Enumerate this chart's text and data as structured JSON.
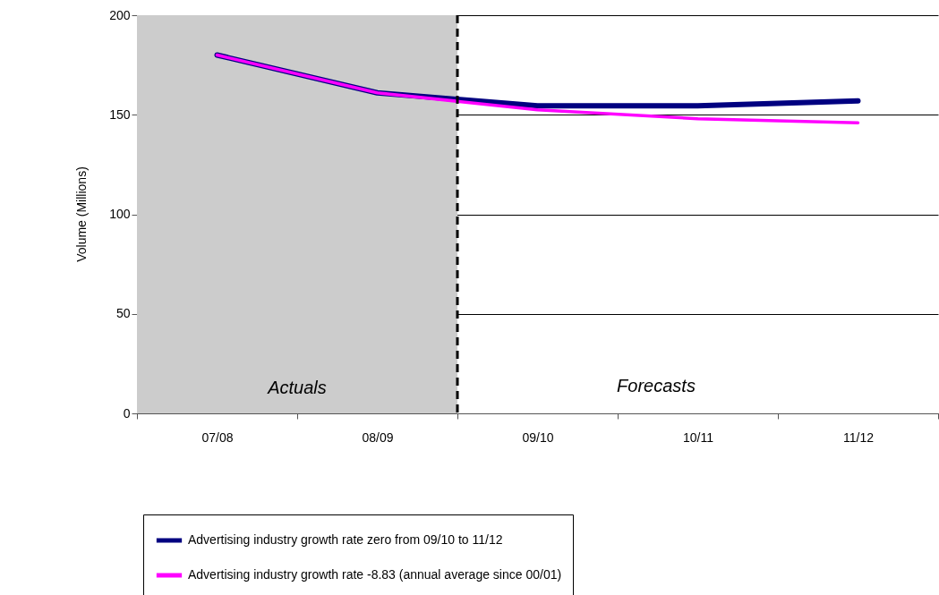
{
  "chart_data": {
    "type": "line",
    "ylabel": "Volume (Millions)",
    "categories": [
      "07/08",
      "08/09",
      "09/10",
      "10/11",
      "11/12"
    ],
    "series": [
      {
        "name": "Advertising industry growth rate zero from 09/10 to 11/12",
        "color": "#000080",
        "values": [
          180,
          161,
          154.5,
          154.5,
          157
        ]
      },
      {
        "name": "Advertising industry growth rate -8.83 (annual average since 00/01)",
        "color": "#ff00ff",
        "values": [
          180,
          161,
          152.5,
          148,
          146
        ]
      }
    ],
    "ylim": [
      0,
      200
    ],
    "yticks": [
      0,
      50,
      100,
      150,
      200
    ],
    "grid": "y",
    "legend": "bottom",
    "line_style": "solid",
    "marker": "none",
    "bands": [
      {
        "axis": "x",
        "from": "07/08",
        "to": "08/09",
        "label": "Actuals",
        "color": "#cccccc"
      }
    ],
    "ref_lines": [
      {
        "axis": "x",
        "value": "09/10",
        "color": "#000000",
        "line_style": "dashed"
      }
    ],
    "annotations": [
      "Forecasts"
    ]
  }
}
